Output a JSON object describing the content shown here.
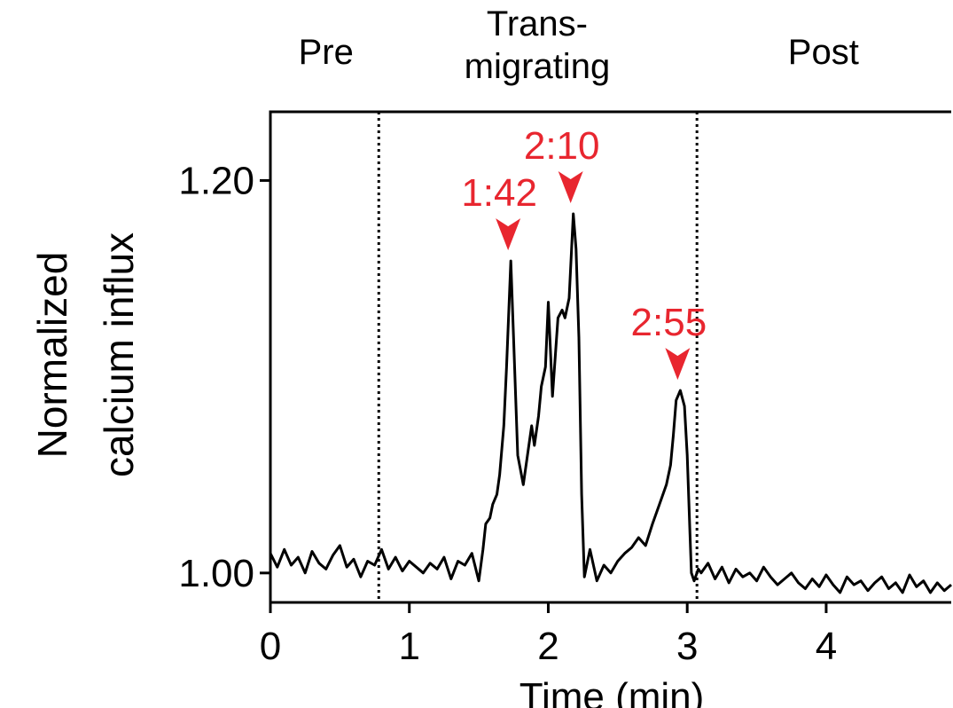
{
  "chart_data": {
    "type": "line",
    "title": "",
    "xlabel": "Time (min)",
    "ylabel_lines": [
      "Normalized",
      "calcium influx"
    ],
    "xlim": [
      0,
      4.9
    ],
    "ylim": [
      0.985,
      1.235
    ],
    "xticks": [
      0,
      1,
      2,
      3,
      4
    ],
    "yticks": [
      1.0,
      1.2
    ],
    "ytick_labels": [
      "1.00",
      "1.20"
    ],
    "grid": false,
    "colors": {
      "line": "#000000",
      "annotation": "#e8262f"
    },
    "regions": [
      {
        "label_lines": [
          "Pre"
        ],
        "x_center": 0.4
      },
      {
        "label_lines": [
          "Trans-",
          "migrating"
        ],
        "x_center": 1.92
      },
      {
        "label_lines": [
          "Post"
        ],
        "x_center": 3.98
      }
    ],
    "dividers_x": [
      0.78,
      3.07
    ],
    "peaks": [
      {
        "label": "1:42",
        "x": 1.73,
        "y": 1.159
      },
      {
        "label": "2:10",
        "x": 2.18,
        "y": 1.183
      },
      {
        "label": "2:55",
        "x": 2.95,
        "y": 1.093
      }
    ],
    "series": [
      {
        "x": [
          0.0,
          0.05,
          0.1,
          0.15,
          0.2,
          0.25,
          0.3,
          0.35,
          0.4,
          0.45,
          0.5,
          0.55,
          0.6,
          0.65,
          0.7,
          0.75,
          0.8,
          0.85,
          0.9,
          0.95,
          1.0,
          1.05,
          1.1,
          1.15,
          1.2,
          1.25,
          1.3,
          1.35,
          1.4,
          1.45,
          1.5,
          1.53,
          1.55,
          1.58,
          1.6,
          1.63,
          1.65,
          1.68,
          1.7,
          1.73,
          1.75,
          1.78,
          1.82,
          1.85,
          1.88,
          1.9,
          1.93,
          1.95,
          1.98,
          2.0,
          2.03,
          2.05,
          2.07,
          2.1,
          2.12,
          2.15,
          2.18,
          2.2,
          2.22,
          2.24,
          2.26,
          2.3,
          2.35,
          2.4,
          2.45,
          2.5,
          2.55,
          2.6,
          2.65,
          2.7,
          2.75,
          2.8,
          2.85,
          2.88,
          2.9,
          2.92,
          2.95,
          2.98,
          3.0,
          3.02,
          3.03,
          3.05,
          3.08,
          3.1,
          3.15,
          3.2,
          3.25,
          3.3,
          3.35,
          3.4,
          3.45,
          3.5,
          3.55,
          3.6,
          3.65,
          3.7,
          3.75,
          3.8,
          3.85,
          3.9,
          3.95,
          4.0,
          4.05,
          4.1,
          4.15,
          4.2,
          4.25,
          4.3,
          4.35,
          4.4,
          4.45,
          4.5,
          4.55,
          4.6,
          4.65,
          4.7,
          4.75,
          4.8,
          4.85,
          4.9
        ],
        "values": [
          1.01,
          1.003,
          1.012,
          1.004,
          1.008,
          1.0,
          1.011,
          1.005,
          1.002,
          1.009,
          1.014,
          1.003,
          1.007,
          0.998,
          1.006,
          1.004,
          1.012,
          1.002,
          1.008,
          1.001,
          1.006,
          1.003,
          1.0,
          1.005,
          1.002,
          1.008,
          0.997,
          1.006,
          1.004,
          1.01,
          0.996,
          1.012,
          1.025,
          1.028,
          1.035,
          1.04,
          1.05,
          1.075,
          1.105,
          1.159,
          1.12,
          1.06,
          1.045,
          1.06,
          1.075,
          1.065,
          1.08,
          1.095,
          1.105,
          1.138,
          1.09,
          1.11,
          1.13,
          1.134,
          1.13,
          1.14,
          1.183,
          1.165,
          1.12,
          1.04,
          0.998,
          1.012,
          0.996,
          1.004,
          1.0,
          1.006,
          1.01,
          1.013,
          1.018,
          1.014,
          1.025,
          1.035,
          1.045,
          1.055,
          1.07,
          1.088,
          1.093,
          1.085,
          1.06,
          1.02,
          1.0,
          0.996,
          1.002,
          1.0,
          1.005,
          0.997,
          1.003,
          0.995,
          1.002,
          0.998,
          1.0,
          0.996,
          1.003,
          0.998,
          0.994,
          0.997,
          1.0,
          0.995,
          0.992,
          0.997,
          0.993,
          0.999,
          0.994,
          0.99,
          0.998,
          0.994,
          0.996,
          0.991,
          0.995,
          0.998,
          0.992,
          0.995,
          0.99,
          0.999,
          0.993,
          0.996,
          0.99,
          0.995,
          0.991,
          0.994
        ]
      }
    ]
  }
}
